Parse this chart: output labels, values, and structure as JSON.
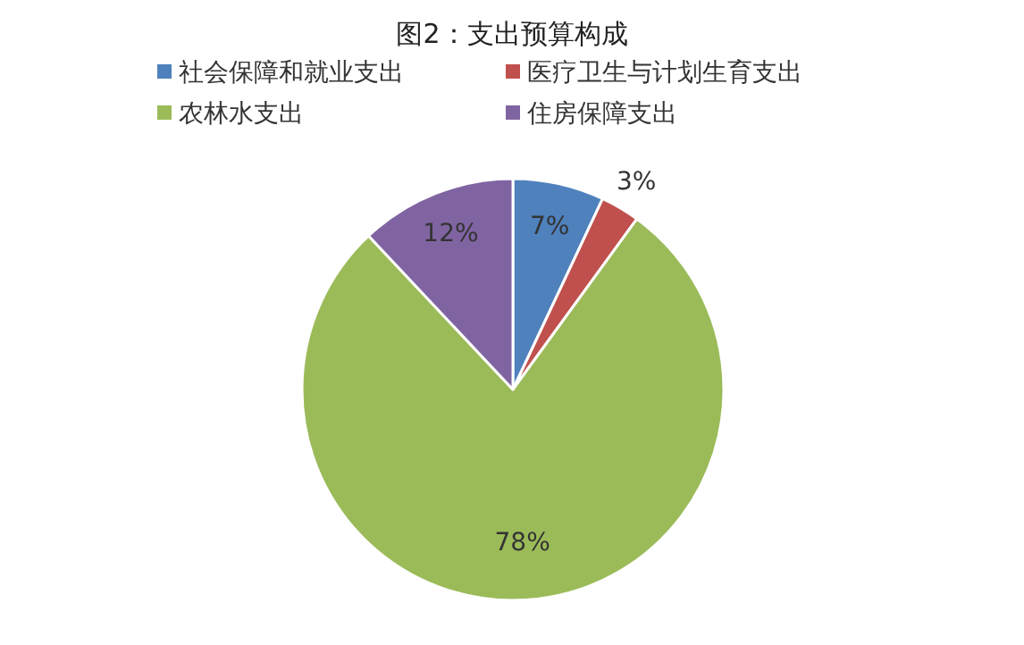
{
  "chart_data": {
    "type": "pie",
    "title": "图2：支出预算构成",
    "categories": [
      "社会保障和就业支出",
      "医疗卫生与计划生育支出",
      "农林水支出",
      "住房保障支出"
    ],
    "values": [
      7,
      3,
      78,
      12
    ],
    "colors": [
      "#4f81bd",
      "#c0504d",
      "#9bbb59",
      "#8064a2"
    ],
    "value_labels": [
      "7%",
      "3%",
      "78%",
      "12%"
    ],
    "legend": "top"
  }
}
